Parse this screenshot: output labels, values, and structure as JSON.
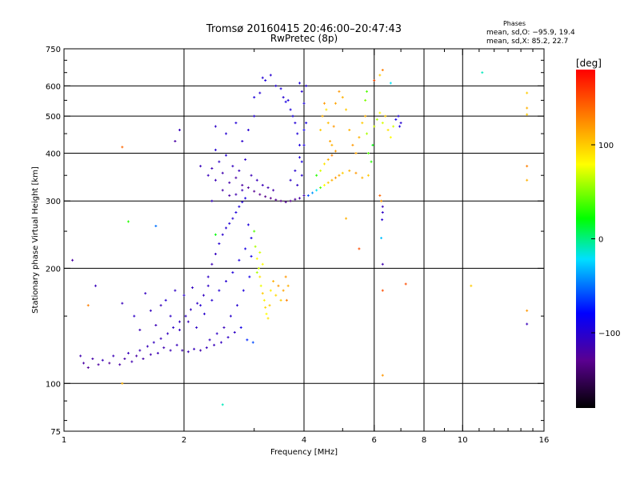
{
  "header": {
    "title": "Tromsø 20160415 20:46:00–20:47:43",
    "subtitle": "RwPretec (8p)"
  },
  "stats": {
    "heading": "Phases",
    "line_o": "mean, sd,O: −95.9, 19.4",
    "line_x": "mean, sd,X:  85.2, 22.7"
  },
  "colorbar": {
    "label": "[deg]",
    "ticks": [
      {
        "value": 100,
        "label": "100"
      },
      {
        "value": 0,
        "label": "0"
      },
      {
        "value": -100,
        "label": "−100"
      }
    ],
    "range": [
      -180,
      180
    ],
    "colors": [
      "#000000",
      "#5a0090",
      "#0000ff",
      "#00e0ff",
      "#00ff00",
      "#ffff00",
      "#ff8000",
      "#ff0000"
    ]
  },
  "chart_data": {
    "type": "scatter",
    "title": "Tromsø 20160415 20:46:00–20:47:43",
    "subtitle": "RwPretec (8p)",
    "xlabel": "Frequency [MHz]",
    "ylabel": "Stationary phase Virtual Height [km]",
    "x_scale": "log",
    "y_scale": "log",
    "xlim": [
      1,
      16
    ],
    "ylim": [
      75,
      750
    ],
    "x_ticks": [
      {
        "value": 1,
        "label": "1"
      },
      {
        "value": 2,
        "label": "2"
      },
      {
        "value": 4,
        "label": "4"
      },
      {
        "value": 6,
        "label": "6"
      },
      {
        "value": 8,
        "label": "8"
      },
      {
        "value": 10,
        "label": "10"
      },
      {
        "value": 16,
        "label": "16"
      }
    ],
    "x_minor_ticks": [
      3,
      5,
      7,
      9,
      11,
      12,
      13,
      14,
      15
    ],
    "y_ticks": [
      {
        "value": 75,
        "label": "75"
      },
      {
        "value": 100,
        "label": "100"
      },
      {
        "value": 200,
        "label": "200"
      },
      {
        "value": 300,
        "label": "300"
      },
      {
        "value": 400,
        "label": "400"
      },
      {
        "value": 500,
        "label": "500"
      },
      {
        "value": 600,
        "label": "600"
      },
      {
        "value": 750,
        "label": "750"
      }
    ],
    "y_minor_ticks": [
      80,
      90,
      150,
      250,
      350,
      450,
      550,
      650,
      700
    ],
    "x_grid": [
      2,
      4,
      6,
      8,
      10
    ],
    "y_grid": [
      100,
      200,
      300,
      400,
      500,
      600
    ],
    "grid": true,
    "color_scale": "phase in degrees",
    "points": [
      [
        1.1,
        118,
        -115
      ],
      [
        1.12,
        113,
        -120
      ],
      [
        1.15,
        110,
        -125
      ],
      [
        1.18,
        116,
        -118
      ],
      [
        1.22,
        112,
        -122
      ],
      [
        1.25,
        115,
        -110
      ],
      [
        1.3,
        113,
        -125
      ],
      [
        1.33,
        118,
        -112
      ],
      [
        1.38,
        112,
        -120
      ],
      [
        1.42,
        116,
        -118
      ],
      [
        1.45,
        120,
        -110
      ],
      [
        1.48,
        114,
        -115
      ],
      [
        1.52,
        118,
        -120
      ],
      [
        1.55,
        122,
        -112
      ],
      [
        1.58,
        116,
        -118
      ],
      [
        1.62,
        125,
        -110
      ],
      [
        1.65,
        119,
        -115
      ],
      [
        1.68,
        128,
        -108
      ],
      [
        1.72,
        120,
        -112
      ],
      [
        1.75,
        131,
        -110
      ],
      [
        1.78,
        124,
        -115
      ],
      [
        1.82,
        135,
        -108
      ],
      [
        1.85,
        122,
        -112
      ],
      [
        1.88,
        140,
        -105
      ],
      [
        1.92,
        126,
        -110
      ],
      [
        1.95,
        145,
        -108
      ],
      [
        1.98,
        122,
        -115
      ],
      [
        2.02,
        150,
        -105
      ],
      [
        2.05,
        121,
        -112
      ],
      [
        2.08,
        156,
        -108
      ],
      [
        2.12,
        123,
        -110
      ],
      [
        2.16,
        162,
        -105
      ],
      [
        2.2,
        122,
        -115
      ],
      [
        2.24,
        170,
        -108
      ],
      [
        2.28,
        124,
        -110
      ],
      [
        2.3,
        190,
        -105
      ],
      [
        2.32,
        130,
        -108
      ],
      [
        2.35,
        205,
        -112
      ],
      [
        2.38,
        126,
        -110
      ],
      [
        2.4,
        218,
        -108
      ],
      [
        2.42,
        135,
        -105
      ],
      [
        2.45,
        232,
        -100
      ],
      [
        2.48,
        128,
        -108
      ],
      [
        2.5,
        245,
        -102
      ],
      [
        2.52,
        140,
        -110
      ],
      [
        2.55,
        255,
        -100
      ],
      [
        2.58,
        132,
        -105
      ],
      [
        2.6,
        262,
        -98
      ],
      [
        2.62,
        150,
        -102
      ],
      [
        2.65,
        270,
        -100
      ],
      [
        2.68,
        136,
        -105
      ],
      [
        2.7,
        280,
        -95
      ],
      [
        2.72,
        160,
        -100
      ],
      [
        2.75,
        290,
        -96
      ],
      [
        2.78,
        140,
        -90
      ],
      [
        2.8,
        298,
        -98
      ],
      [
        2.82,
        175,
        -95
      ],
      [
        2.85,
        305,
        -92
      ],
      [
        2.88,
        130,
        -70
      ],
      [
        2.9,
        260,
        -95
      ],
      [
        2.92,
        190,
        -90
      ],
      [
        2.95,
        240,
        -92
      ],
      [
        2.98,
        128,
        -60
      ],
      [
        1.4,
        162,
        -110
      ],
      [
        1.5,
        150,
        -105
      ],
      [
        1.6,
        172,
        -108
      ],
      [
        1.7,
        142,
        -112
      ],
      [
        1.8,
        165,
        -100
      ],
      [
        1.9,
        175,
        -105
      ],
      [
        2.0,
        170,
        -102
      ],
      [
        2.1,
        178,
        -108
      ],
      [
        2.2,
        160,
        -100
      ],
      [
        2.3,
        180,
        -105
      ],
      [
        1.55,
        138,
        -112
      ],
      [
        1.65,
        155,
        -108
      ],
      [
        1.75,
        160,
        -110
      ],
      [
        1.85,
        150,
        -105
      ],
      [
        1.95,
        138,
        -108
      ],
      [
        2.05,
        145,
        -110
      ],
      [
        2.15,
        140,
        -105
      ],
      [
        2.25,
        152,
        -102
      ],
      [
        2.35,
        165,
        -100
      ],
      [
        2.45,
        175,
        -98
      ],
      [
        2.55,
        185,
        -100
      ],
      [
        2.65,
        195,
        -96
      ],
      [
        2.75,
        210,
        -95
      ],
      [
        2.85,
        225,
        -92
      ],
      [
        2.95,
        215,
        -90
      ],
      [
        3.0,
        250,
        40
      ],
      [
        3.02,
        228,
        60
      ],
      [
        3.05,
        212,
        80
      ],
      [
        3.08,
        200,
        70
      ],
      [
        3.1,
        190,
        90
      ],
      [
        3.12,
        180,
        75
      ],
      [
        3.15,
        172,
        100
      ],
      [
        3.18,
        165,
        85
      ],
      [
        3.2,
        158,
        95
      ],
      [
        3.22,
        152,
        80
      ],
      [
        3.25,
        148,
        90
      ],
      [
        3.28,
        160,
        100
      ],
      [
        3.3,
        175,
        85
      ],
      [
        3.35,
        185,
        110
      ],
      [
        3.4,
        170,
        95
      ],
      [
        3.45,
        180,
        120
      ],
      [
        3.5,
        165,
        100
      ],
      [
        3.55,
        175,
        115
      ],
      [
        3.6,
        190,
        120
      ],
      [
        3.62,
        165,
        130
      ],
      [
        3.65,
        180,
        110
      ],
      [
        3.05,
        195,
        60
      ],
      [
        3.1,
        220,
        70
      ],
      [
        3.15,
        205,
        80
      ],
      [
        2.3,
        350,
        -110
      ],
      [
        2.4,
        340,
        -112
      ],
      [
        2.5,
        355,
        -115
      ],
      [
        2.6,
        335,
        -118
      ],
      [
        2.7,
        345,
        -120
      ],
      [
        2.8,
        330,
        -122
      ],
      [
        2.9,
        325,
        -125
      ],
      [
        3.0,
        318,
        -128
      ],
      [
        3.1,
        312,
        -130
      ],
      [
        3.2,
        308,
        -132
      ],
      [
        3.3,
        305,
        -130
      ],
      [
        3.4,
        302,
        -128
      ],
      [
        3.5,
        300,
        -130
      ],
      [
        3.6,
        298,
        -125
      ],
      [
        3.7,
        300,
        -128
      ],
      [
        3.8,
        303,
        -125
      ],
      [
        3.9,
        305,
        -120
      ],
      [
        4.0,
        310,
        -115
      ],
      [
        2.45,
        380,
        -105
      ],
      [
        2.55,
        395,
        -100
      ],
      [
        2.65,
        370,
        -108
      ],
      [
        2.75,
        360,
        -110
      ],
      [
        2.85,
        385,
        -105
      ],
      [
        2.95,
        350,
        -112
      ],
      [
        3.05,
        340,
        -110
      ],
      [
        3.15,
        330,
        -112
      ],
      [
        3.25,
        325,
        -115
      ],
      [
        3.35,
        320,
        -118
      ],
      [
        2.35,
        365,
        -112
      ],
      [
        2.5,
        320,
        -118
      ],
      [
        2.6,
        310,
        -120
      ],
      [
        2.7,
        312,
        -115
      ],
      [
        2.8,
        320,
        -112
      ],
      [
        2.4,
        470,
        -105
      ],
      [
        2.55,
        450,
        -100
      ],
      [
        2.7,
        480,
        -98
      ],
      [
        2.8,
        430,
        -102
      ],
      [
        2.9,
        460,
        -100
      ],
      [
        3.0,
        500,
        -98
      ],
      [
        3.0,
        560,
        -95
      ],
      [
        3.1,
        575,
        -100
      ],
      [
        3.15,
        630,
        -98
      ],
      [
        3.2,
        620,
        -95
      ],
      [
        3.3,
        640,
        -100
      ],
      [
        3.4,
        600,
        -98
      ],
      [
        3.5,
        590,
        -95
      ],
      [
        3.55,
        560,
        -100
      ],
      [
        3.6,
        545,
        -92
      ],
      [
        3.7,
        520,
        -95
      ],
      [
        3.8,
        480,
        -98
      ],
      [
        3.9,
        420,
        -95
      ],
      [
        3.95,
        380,
        -92
      ],
      [
        3.85,
        450,
        -96
      ],
      [
        3.75,
        500,
        -94
      ],
      [
        3.65,
        550,
        -96
      ],
      [
        3.7,
        340,
        -105
      ],
      [
        3.8,
        360,
        -100
      ],
      [
        3.9,
        390,
        -98
      ],
      [
        4.0,
        420,
        -95
      ],
      [
        4.05,
        480,
        -92
      ],
      [
        4.0,
        540,
        -95
      ],
      [
        4.05,
        600,
        -98
      ],
      [
        3.95,
        580,
        -100
      ],
      [
        3.9,
        610,
        -95
      ],
      [
        4.0,
        460,
        -90
      ],
      [
        3.95,
        350,
        -100
      ],
      [
        3.85,
        330,
        -105
      ],
      [
        4.1,
        310,
        -60
      ],
      [
        4.2,
        315,
        -40
      ],
      [
        4.3,
        320,
        -20
      ],
      [
        4.4,
        325,
        40
      ],
      [
        4.5,
        330,
        80
      ],
      [
        4.6,
        335,
        100
      ],
      [
        4.7,
        340,
        110
      ],
      [
        4.8,
        345,
        120
      ],
      [
        4.9,
        350,
        115
      ],
      [
        5.0,
        355,
        100
      ],
      [
        5.2,
        360,
        110
      ],
      [
        5.4,
        355,
        120
      ],
      [
        5.6,
        345,
        110
      ],
      [
        5.8,
        350,
        100
      ],
      [
        4.3,
        350,
        30
      ],
      [
        4.4,
        360,
        70
      ],
      [
        4.5,
        375,
        90
      ],
      [
        4.6,
        385,
        110
      ],
      [
        4.7,
        395,
        130
      ],
      [
        4.8,
        405,
        120
      ],
      [
        4.4,
        460,
        100
      ],
      [
        4.45,
        500,
        110
      ],
      [
        4.5,
        540,
        120
      ],
      [
        4.55,
        520,
        90
      ],
      [
        4.6,
        480,
        105
      ],
      [
        4.65,
        430,
        115
      ],
      [
        4.7,
        420,
        110
      ],
      [
        4.75,
        470,
        120
      ],
      [
        4.8,
        540,
        115
      ],
      [
        4.9,
        580,
        120
      ],
      [
        5.0,
        560,
        110
      ],
      [
        5.1,
        520,
        100
      ],
      [
        5.2,
        460,
        110
      ],
      [
        5.3,
        420,
        120
      ],
      [
        5.4,
        400,
        115
      ],
      [
        5.5,
        440,
        110
      ],
      [
        5.6,
        480,
        100
      ],
      [
        5.7,
        500,
        110
      ],
      [
        5.75,
        450,
        60
      ],
      [
        5.8,
        400,
        40
      ],
      [
        5.9,
        380,
        30
      ],
      [
        5.95,
        420,
        20
      ],
      [
        5.7,
        550,
        50
      ],
      [
        5.75,
        580,
        40
      ],
      [
        6.0,
        470,
        70
      ],
      [
        6.1,
        490,
        60
      ],
      [
        6.2,
        510,
        80
      ],
      [
        6.3,
        480,
        70
      ],
      [
        6.4,
        500,
        100
      ],
      [
        6.5,
        460,
        90
      ],
      [
        6.6,
        440,
        80
      ],
      [
        6.7,
        470,
        70
      ],
      [
        6.8,
        490,
        -90
      ],
      [
        6.9,
        500,
        -95
      ],
      [
        7.0,
        480,
        -100
      ],
      [
        6.95,
        470,
        -95
      ],
      [
        6.2,
        310,
        140
      ],
      [
        6.25,
        300,
        120
      ],
      [
        6.3,
        290,
        -110
      ],
      [
        6.3,
        280,
        -105
      ],
      [
        6.28,
        268,
        -100
      ],
      [
        6.25,
        240,
        -30
      ],
      [
        6.3,
        205,
        -115
      ],
      [
        6.3,
        175,
        150
      ],
      [
        6.3,
        105,
        120
      ],
      [
        6.3,
        660,
        130
      ],
      [
        6.2,
        640,
        100
      ],
      [
        6.6,
        610,
        -20
      ],
      [
        6.0,
        620,
        150
      ],
      [
        5.5,
        225,
        150
      ],
      [
        5.1,
        270,
        110
      ],
      [
        7.2,
        182,
        150
      ],
      [
        1.05,
        210,
        -120
      ],
      [
        1.15,
        160,
        130
      ],
      [
        1.2,
        180,
        -110
      ],
      [
        1.4,
        100,
        110
      ],
      [
        1.4,
        415,
        140
      ],
      [
        1.45,
        265,
        30
      ],
      [
        1.9,
        430,
        -120
      ],
      [
        1.95,
        460,
        -110
      ],
      [
        1.7,
        258,
        -50
      ],
      [
        2.4,
        408,
        -100
      ],
      [
        2.4,
        245,
        20
      ],
      [
        2.5,
        88,
        -10
      ],
      [
        2.2,
        370,
        -110
      ],
      [
        2.35,
        300,
        -108
      ],
      [
        10.5,
        180,
        100
      ],
      [
        11.2,
        650,
        -10
      ],
      [
        14.5,
        155,
        120
      ],
      [
        14.5,
        143,
        -110
      ],
      [
        14.5,
        370,
        130
      ],
      [
        14.5,
        340,
        110
      ],
      [
        14.5,
        525,
        110
      ],
      [
        14.5,
        505,
        100
      ],
      [
        14.5,
        575,
        100
      ]
    ]
  }
}
